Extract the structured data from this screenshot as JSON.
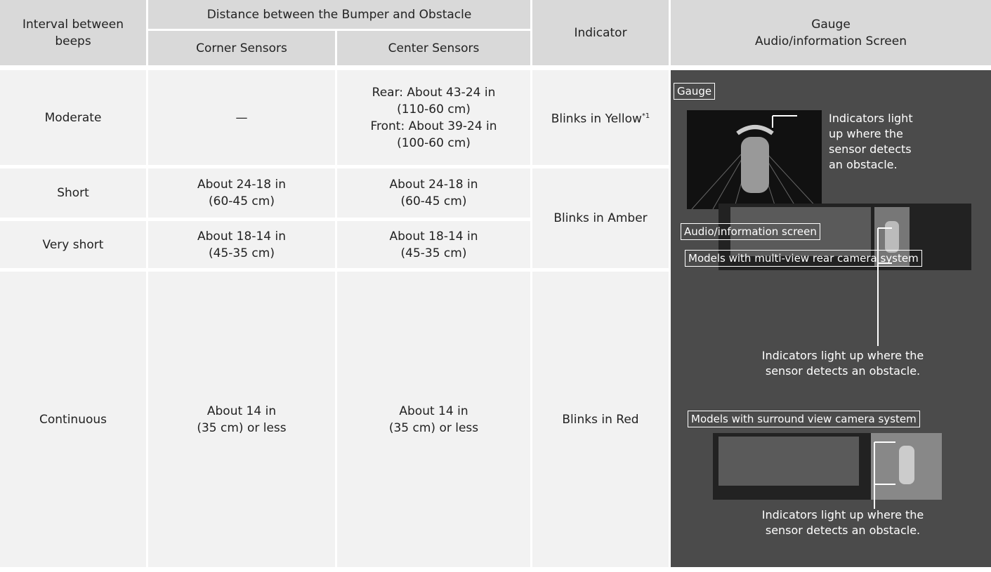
{
  "header": {
    "interval": [
      "Interval between",
      "beeps"
    ],
    "distance": "Distance between the Bumper and Obstacle",
    "corner": "Corner Sensors",
    "center": "Center Sensors",
    "indicator": "Indicator",
    "screen": [
      "Gauge",
      "Audio/information Screen"
    ]
  },
  "rows": [
    {
      "interval": "Moderate",
      "corner": [
        "—"
      ],
      "center": [
        "Rear: About 43-24 in",
        "(110-60 cm)",
        "Front: About 39-24 in",
        "(100-60 cm)"
      ],
      "indicator": "Blinks in Yellow",
      "note": "*1"
    },
    {
      "interval": "Short",
      "corner": [
        "About 24-18 in",
        "(60-45 cm)"
      ],
      "center": [
        "About 24-18 in",
        "(60-45 cm)"
      ],
      "indicator": "Blinks in Amber"
    },
    {
      "interval": "Very short",
      "corner": [
        "About 18-14 in",
        "(45-35 cm)"
      ],
      "center": [
        "About 18-14 in",
        "(45-35 cm)"
      ]
    },
    {
      "interval": "Continuous",
      "corner": [
        "About 14 in",
        "(35 cm) or less"
      ],
      "center": [
        "About 14 in",
        "(35 cm) or less"
      ],
      "indicator": "Blinks in Red"
    }
  ],
  "panel": {
    "gauge_label": "Gauge",
    "gauge_caption": [
      "Indicators light",
      "up where the",
      "sensor detects",
      "an obstacle."
    ],
    "audio_label": "Audio/information screen",
    "multi_label": "Models with multi-view rear camera system",
    "multi_caption": [
      "Indicators light up where the",
      "sensor detects an obstacle."
    ],
    "surround_label": "Models with surround view camera system",
    "surround_caption": [
      "Indicators light up where the",
      "sensor detects an obstacle."
    ]
  }
}
